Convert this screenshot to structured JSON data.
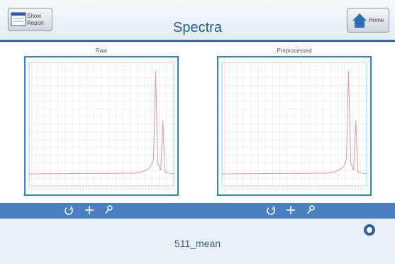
{
  "header": {
    "report_button": "Show\nReport",
    "title": "Spectra",
    "home_button": "Home"
  },
  "panels": [
    {
      "label": "Raw"
    },
    {
      "label": "Preprocessed"
    }
  ],
  "footer": {
    "sample_name": "511_mean"
  }
}
